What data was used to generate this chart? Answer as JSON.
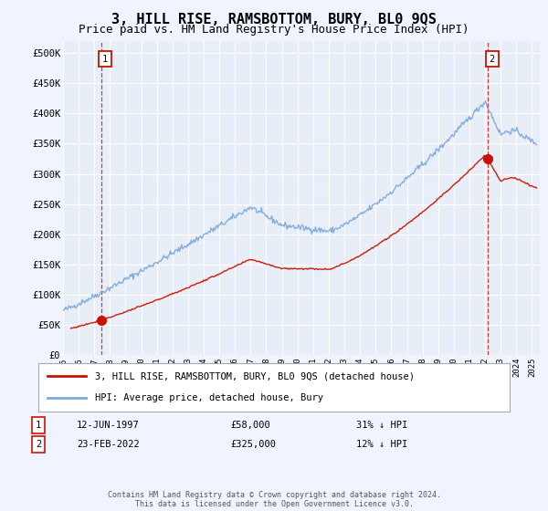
{
  "title": "3, HILL RISE, RAMSBOTTOM, BURY, BL0 9QS",
  "subtitle": "Price paid vs. HM Land Registry's House Price Index (HPI)",
  "title_fontsize": 11,
  "subtitle_fontsize": 9,
  "ylabel_ticks": [
    "£0",
    "£50K",
    "£100K",
    "£150K",
    "£200K",
    "£250K",
    "£300K",
    "£350K",
    "£400K",
    "£450K",
    "£500K"
  ],
  "ytick_values": [
    0,
    50000,
    100000,
    150000,
    200000,
    250000,
    300000,
    350000,
    400000,
    450000,
    500000
  ],
  "ylim": [
    0,
    520000
  ],
  "xlim_start": 1995.0,
  "xlim_end": 2025.5,
  "background_color": "#f0f4ff",
  "plot_bg_color": "#e8eef8",
  "grid_color": "#ffffff",
  "hpi_line_color": "#7faadd",
  "price_line_color": "#cc1100",
  "sale1_x": 1997.45,
  "sale1_y": 58000,
  "sale1_label": "1",
  "sale2_x": 2022.15,
  "sale2_y": 325000,
  "sale2_label": "2",
  "legend_label1": "3, HILL RISE, RAMSBOTTOM, BURY, BL0 9QS (detached house)",
  "legend_label2": "HPI: Average price, detached house, Bury",
  "footer": "Contains HM Land Registry data © Crown copyright and database right 2024.\nThis data is licensed under the Open Government Licence v3.0.",
  "table_row1": [
    "1",
    "12-JUN-1997",
    "£58,000",
    "31% ↓ HPI"
  ],
  "table_row2": [
    "2",
    "23-FEB-2022",
    "£325,000",
    "12% ↓ HPI"
  ]
}
